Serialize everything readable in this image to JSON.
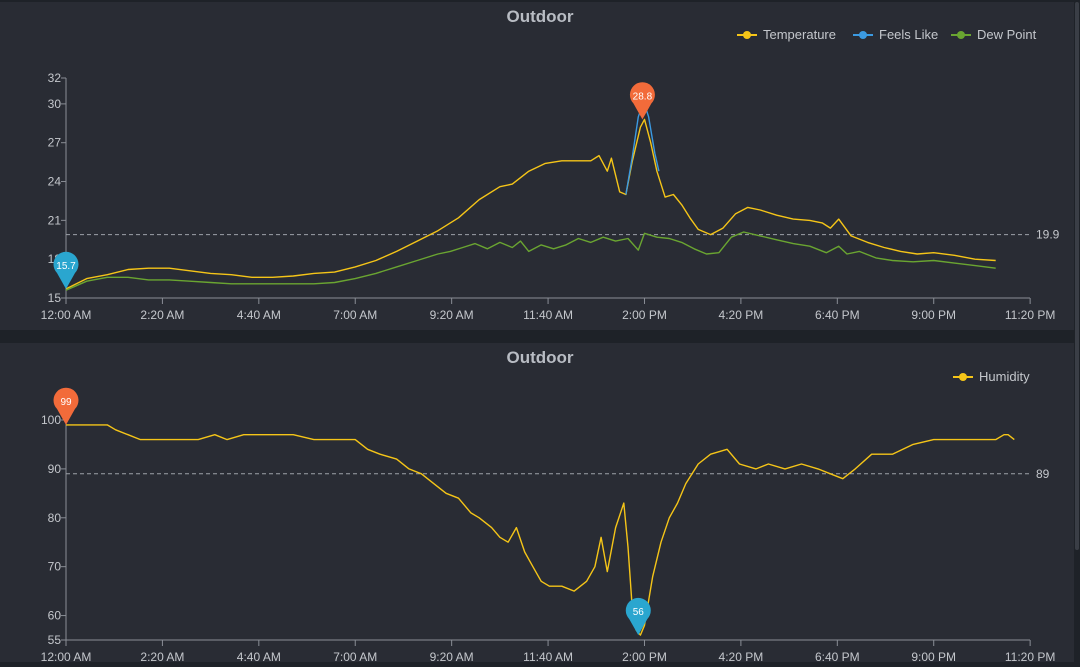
{
  "colors": {
    "temperature": "#f5c518",
    "feels_like": "#3b9ae1",
    "dew_point": "#6aa531",
    "humidity": "#f5c518",
    "max_marker": "#f26b3a",
    "min_marker": "#2aa6cf"
  },
  "chart_data": [
    {
      "type": "line",
      "title": "Outdoor",
      "x_ticks": [
        "12:00 AM",
        "2:20 AM",
        "4:40 AM",
        "7:00 AM",
        "9:20 AM",
        "11:40 AM",
        "2:00 PM",
        "4:20 PM",
        "6:40 PM",
        "9:00 PM",
        "11:20 PM"
      ],
      "x_range_hours": [
        0,
        23.33
      ],
      "y_ticks": [
        "15",
        "18",
        "21",
        "24",
        "27",
        "30",
        "32"
      ],
      "ylim": [
        15,
        32
      ],
      "grid": false,
      "legend_position": "top-right",
      "reference_line": {
        "value": 19.9,
        "label": "19.9"
      },
      "max_marker": {
        "label": "28.8",
        "x_hours": 13.95,
        "value": 28.8,
        "series": "Temperature"
      },
      "min_marker": {
        "label": "15.7",
        "x_hours": 0.0,
        "value": 15.7,
        "series": "Temperature"
      },
      "series": [
        {
          "name": "Temperature",
          "color": "#f5c518",
          "points": [
            [
              0,
              15.7
            ],
            [
              0.5,
              16.5
            ],
            [
              1.0,
              16.8
            ],
            [
              1.5,
              17.2
            ],
            [
              2.0,
              17.3
            ],
            [
              2.5,
              17.3
            ],
            [
              3.0,
              17.1
            ],
            [
              3.5,
              16.9
            ],
            [
              4.0,
              16.8
            ],
            [
              4.5,
              16.6
            ],
            [
              5.0,
              16.6
            ],
            [
              5.5,
              16.7
            ],
            [
              6.0,
              16.9
            ],
            [
              6.5,
              17.0
            ],
            [
              7.0,
              17.4
            ],
            [
              7.5,
              17.9
            ],
            [
              8.0,
              18.6
            ],
            [
              8.5,
              19.4
            ],
            [
              9.0,
              20.2
            ],
            [
              9.5,
              21.2
            ],
            [
              10.0,
              22.6
            ],
            [
              10.5,
              23.6
            ],
            [
              10.8,
              23.8
            ],
            [
              11.2,
              24.8
            ],
            [
              11.6,
              25.4
            ],
            [
              12.0,
              25.6
            ],
            [
              12.4,
              25.6
            ],
            [
              12.7,
              25.6
            ],
            [
              12.9,
              26.0
            ],
            [
              13.1,
              24.8
            ],
            [
              13.2,
              25.8
            ],
            [
              13.4,
              23.2
            ],
            [
              13.55,
              23.0
            ],
            [
              13.7,
              25.5
            ],
            [
              13.9,
              28.2
            ],
            [
              14.0,
              28.8
            ],
            [
              14.15,
              27.0
            ],
            [
              14.3,
              24.8
            ],
            [
              14.5,
              22.8
            ],
            [
              14.7,
              23.0
            ],
            [
              14.9,
              22.2
            ],
            [
              15.1,
              21.2
            ],
            [
              15.3,
              20.3
            ],
            [
              15.6,
              19.9
            ],
            [
              15.9,
              20.4
            ],
            [
              16.2,
              21.5
            ],
            [
              16.5,
              22.0
            ],
            [
              16.8,
              21.8
            ],
            [
              17.2,
              21.4
            ],
            [
              17.6,
              21.1
            ],
            [
              18.0,
              21.0
            ],
            [
              18.3,
              20.8
            ],
            [
              18.5,
              20.4
            ],
            [
              18.7,
              21.1
            ],
            [
              19.0,
              19.8
            ],
            [
              19.4,
              19.3
            ],
            [
              19.8,
              18.9
            ],
            [
              20.2,
              18.6
            ],
            [
              20.6,
              18.4
            ],
            [
              21.0,
              18.5
            ],
            [
              21.5,
              18.3
            ],
            [
              22.0,
              18.0
            ],
            [
              22.5,
              17.9
            ]
          ]
        },
        {
          "name": "Feels Like",
          "color": "#3b9ae1",
          "points": [
            [
              13.55,
              23.0
            ],
            [
              13.7,
              25.8
            ],
            [
              13.85,
              29.0
            ],
            [
              13.98,
              30.2
            ],
            [
              14.1,
              29.0
            ],
            [
              14.25,
              26.2
            ],
            [
              14.35,
              24.8
            ]
          ]
        },
        {
          "name": "Dew Point",
          "color": "#6aa531",
          "points": [
            [
              0,
              15.6
            ],
            [
              0.5,
              16.3
            ],
            [
              1.0,
              16.6
            ],
            [
              1.5,
              16.6
            ],
            [
              2.0,
              16.4
            ],
            [
              2.5,
              16.4
            ],
            [
              3.0,
              16.3
            ],
            [
              3.5,
              16.2
            ],
            [
              4.0,
              16.1
            ],
            [
              4.5,
              16.1
            ],
            [
              5.0,
              16.1
            ],
            [
              5.5,
              16.1
            ],
            [
              6.0,
              16.1
            ],
            [
              6.5,
              16.2
            ],
            [
              7.0,
              16.5
            ],
            [
              7.5,
              16.9
            ],
            [
              8.0,
              17.4
            ],
            [
              8.5,
              17.9
            ],
            [
              9.0,
              18.4
            ],
            [
              9.3,
              18.6
            ],
            [
              9.6,
              18.9
            ],
            [
              9.9,
              19.2
            ],
            [
              10.2,
              18.8
            ],
            [
              10.5,
              19.3
            ],
            [
              10.8,
              18.9
            ],
            [
              11.0,
              19.4
            ],
            [
              11.2,
              18.6
            ],
            [
              11.5,
              19.1
            ],
            [
              11.8,
              18.8
            ],
            [
              12.1,
              19.1
            ],
            [
              12.4,
              19.6
            ],
            [
              12.7,
              19.3
            ],
            [
              13.0,
              19.7
            ],
            [
              13.3,
              19.4
            ],
            [
              13.6,
              19.6
            ],
            [
              13.85,
              18.7
            ],
            [
              14.0,
              20.0
            ],
            [
              14.3,
              19.7
            ],
            [
              14.6,
              19.6
            ],
            [
              14.9,
              19.3
            ],
            [
              15.2,
              18.8
            ],
            [
              15.5,
              18.4
            ],
            [
              15.8,
              18.5
            ],
            [
              16.1,
              19.7
            ],
            [
              16.4,
              20.1
            ],
            [
              16.8,
              19.8
            ],
            [
              17.2,
              19.5
            ],
            [
              17.6,
              19.2
            ],
            [
              18.0,
              19.0
            ],
            [
              18.4,
              18.5
            ],
            [
              18.7,
              19.0
            ],
            [
              18.9,
              18.4
            ],
            [
              19.2,
              18.6
            ],
            [
              19.6,
              18.1
            ],
            [
              20.0,
              17.9
            ],
            [
              20.5,
              17.8
            ],
            [
              21.0,
              17.9
            ],
            [
              21.5,
              17.7
            ],
            [
              22.0,
              17.5
            ],
            [
              22.5,
              17.3
            ]
          ]
        }
      ]
    },
    {
      "type": "line",
      "title": "Outdoor",
      "x_ticks": [
        "12:00 AM",
        "2:20 AM",
        "4:40 AM",
        "7:00 AM",
        "9:20 AM",
        "11:40 AM",
        "2:00 PM",
        "4:20 PM",
        "6:40 PM",
        "9:00 PM",
        "11:20 PM"
      ],
      "x_range_hours": [
        0,
        23.33
      ],
      "y_ticks": [
        "55",
        "60",
        "70",
        "80",
        "90",
        "100"
      ],
      "ylim": [
        55,
        100
      ],
      "grid": false,
      "legend_position": "top-right",
      "reference_line": {
        "value": 89,
        "label": "89"
      },
      "max_marker": {
        "label": "99",
        "x_hours": 0.0,
        "value": 99,
        "series": "Humidity"
      },
      "min_marker": {
        "label": "56",
        "x_hours": 13.85,
        "value": 56,
        "series": "Humidity"
      },
      "series": [
        {
          "name": "Humidity",
          "color": "#f5c518",
          "points": [
            [
              0,
              99
            ],
            [
              0.5,
              99
            ],
            [
              1.0,
              99
            ],
            [
              1.2,
              98
            ],
            [
              1.5,
              97
            ],
            [
              1.8,
              96
            ],
            [
              2.2,
              96
            ],
            [
              2.7,
              96
            ],
            [
              3.2,
              96
            ],
            [
              3.6,
              97
            ],
            [
              3.9,
              96
            ],
            [
              4.3,
              97
            ],
            [
              5.0,
              97
            ],
            [
              5.5,
              97
            ],
            [
              6.0,
              96
            ],
            [
              6.5,
              96
            ],
            [
              7.0,
              96
            ],
            [
              7.3,
              94
            ],
            [
              7.6,
              93
            ],
            [
              8.0,
              92
            ],
            [
              8.3,
              90
            ],
            [
              8.6,
              89
            ],
            [
              8.9,
              87
            ],
            [
              9.2,
              85
            ],
            [
              9.5,
              84
            ],
            [
              9.8,
              81
            ],
            [
              10.0,
              80
            ],
            [
              10.3,
              78
            ],
            [
              10.5,
              76
            ],
            [
              10.7,
              75
            ],
            [
              10.9,
              78
            ],
            [
              11.1,
              73
            ],
            [
              11.3,
              70
            ],
            [
              11.5,
              67
            ],
            [
              11.7,
              66
            ],
            [
              12.0,
              66
            ],
            [
              12.3,
              65
            ],
            [
              12.6,
              67
            ],
            [
              12.8,
              70
            ],
            [
              12.95,
              76
            ],
            [
              13.1,
              69
            ],
            [
              13.3,
              78
            ],
            [
              13.5,
              83
            ],
            [
              13.6,
              74
            ],
            [
              13.7,
              62
            ],
            [
              13.8,
              57
            ],
            [
              13.9,
              56
            ],
            [
              14.0,
              58
            ],
            [
              14.2,
              68
            ],
            [
              14.4,
              75
            ],
            [
              14.6,
              80
            ],
            [
              14.8,
              83
            ],
            [
              15.0,
              87
            ],
            [
              15.3,
              91
            ],
            [
              15.6,
              93
            ],
            [
              16.0,
              94
            ],
            [
              16.3,
              91
            ],
            [
              16.7,
              90
            ],
            [
              17.0,
              91
            ],
            [
              17.4,
              90
            ],
            [
              17.8,
              91
            ],
            [
              18.2,
              90
            ],
            [
              18.5,
              89
            ],
            [
              18.8,
              88
            ],
            [
              19.1,
              90
            ],
            [
              19.5,
              93
            ],
            [
              20.0,
              93
            ],
            [
              20.5,
              95
            ],
            [
              21.0,
              96
            ],
            [
              21.5,
              96
            ],
            [
              22.0,
              96
            ],
            [
              22.5,
              96
            ],
            [
              22.7,
              97
            ],
            [
              22.8,
              97
            ],
            [
              22.95,
              96
            ]
          ]
        }
      ]
    }
  ]
}
